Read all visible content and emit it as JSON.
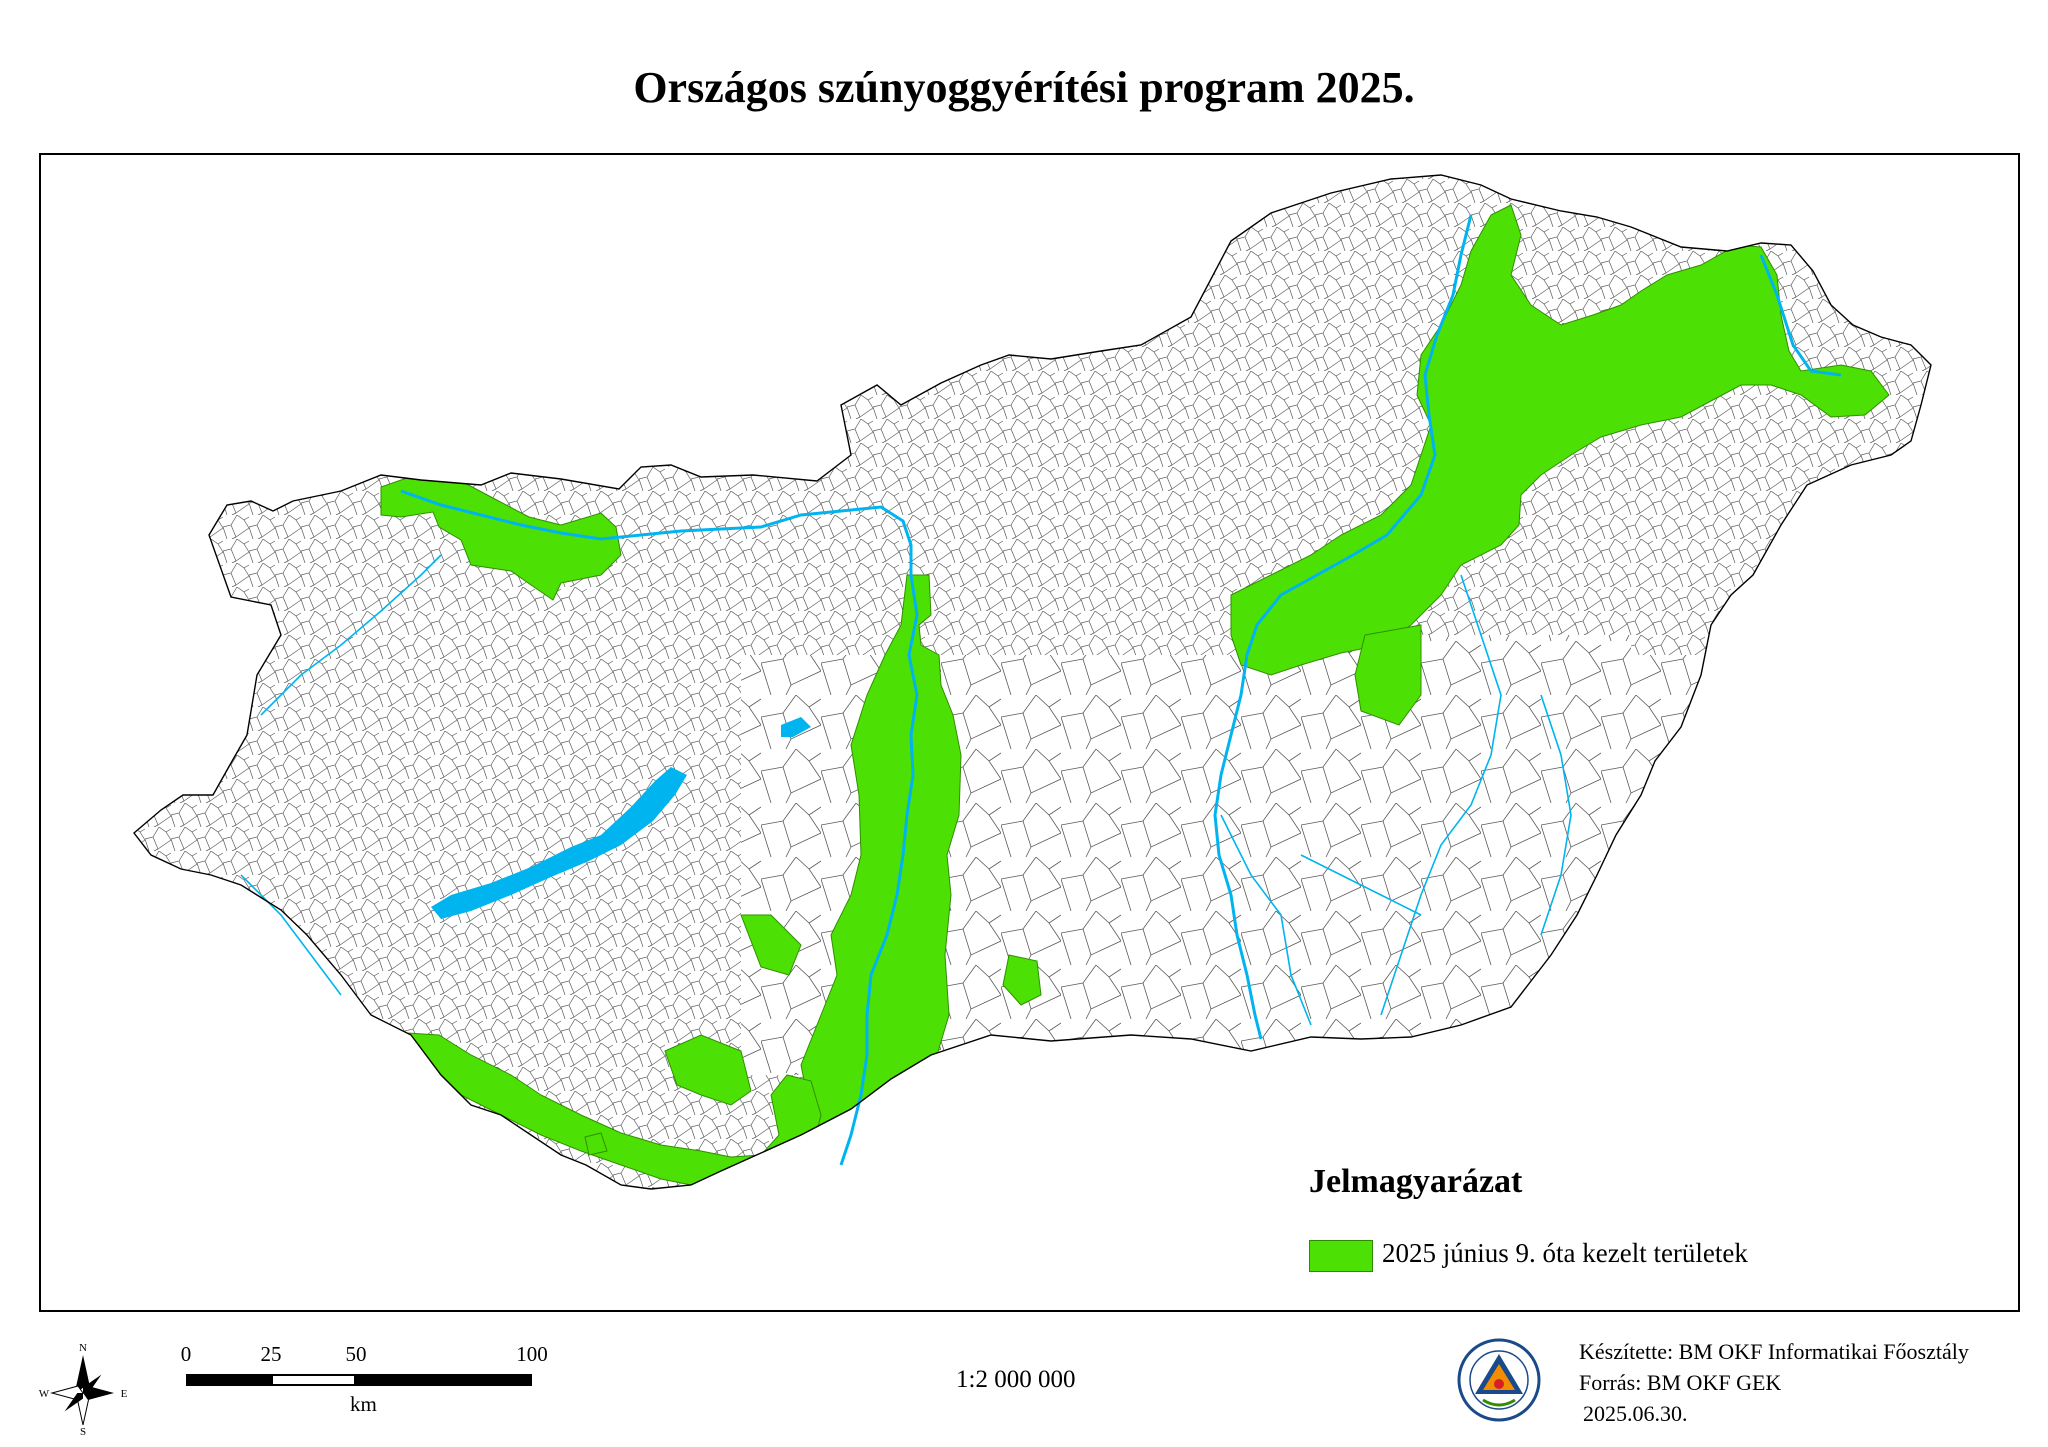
{
  "title": "Országos szúnyoggyérítési program 2025.",
  "legend": {
    "title": "Jelmagyarázat",
    "items": [
      {
        "label": "2025 június 9. óta kezelt területek",
        "color": "#4de004"
      }
    ]
  },
  "map": {
    "water_color": "#00b4f0",
    "treated_color": "#4de004",
    "boundary_color": "#555555"
  },
  "compass": {
    "n": "N",
    "s": "S",
    "e": "E",
    "w": "W"
  },
  "scale_bar": {
    "ticks": [
      "0",
      "25",
      "50",
      "100"
    ],
    "unit": "km"
  },
  "scale_ratio": "1:2 000 000",
  "credits": {
    "author": "Készítette: BM OKF Informatikai Főosztály",
    "source": "Forrás: BM OKF GEK",
    "date": "2025.06.30."
  },
  "emblem_label": "emblem"
}
